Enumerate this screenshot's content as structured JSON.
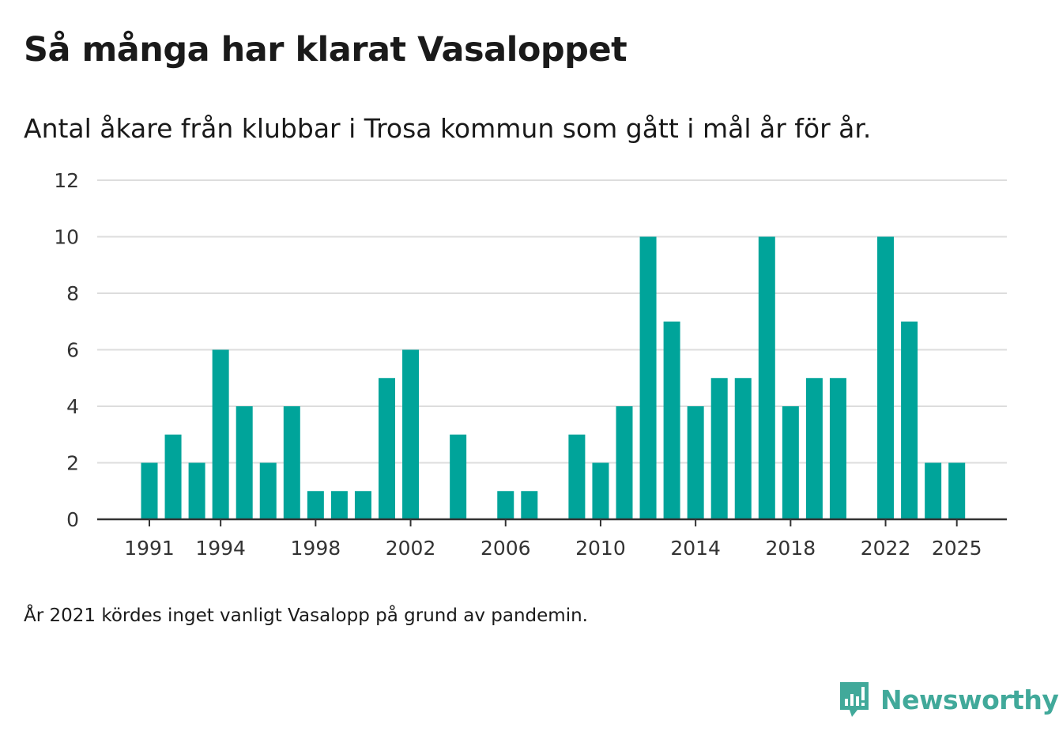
{
  "title": "Så många har klarat Vasaloppet",
  "subtitle": "Antal åkare från klubbar i Trosa kommun som gått i mål år för år.",
  "note": "År 2021 kördes inget vanligt Vasalopp på grund av pandemin.",
  "brand": {
    "name": "Newsworthy",
    "color": "#41a99a",
    "icon": "newsworthy-logo-icon"
  },
  "colors": {
    "bar": "#00a49a",
    "grid": "#dddddd",
    "axis": "#333333"
  },
  "chart_data": {
    "type": "bar",
    "title": "Så många har klarat Vasaloppet",
    "xlabel": "",
    "ylabel": "",
    "ylim": [
      0,
      12
    ],
    "yticks": [
      0,
      2,
      4,
      6,
      8,
      10,
      12
    ],
    "xticks": [
      1991,
      1994,
      1998,
      2002,
      2006,
      2010,
      2014,
      2018,
      2022,
      2025
    ],
    "categories": [
      1991,
      1992,
      1993,
      1994,
      1995,
      1996,
      1997,
      1998,
      1999,
      2000,
      2001,
      2002,
      2003,
      2004,
      2005,
      2006,
      2007,
      2008,
      2009,
      2010,
      2011,
      2012,
      2013,
      2014,
      2015,
      2016,
      2017,
      2018,
      2019,
      2020,
      2021,
      2022,
      2023,
      2024,
      2025
    ],
    "values": [
      2,
      3,
      2,
      6,
      4,
      2,
      4,
      1,
      1,
      1,
      5,
      6,
      0,
      3,
      0,
      1,
      1,
      0,
      3,
      2,
      4,
      10,
      7,
      4,
      5,
      5,
      10,
      4,
      5,
      5,
      0,
      10,
      7,
      2,
      2
    ],
    "grid": true
  }
}
